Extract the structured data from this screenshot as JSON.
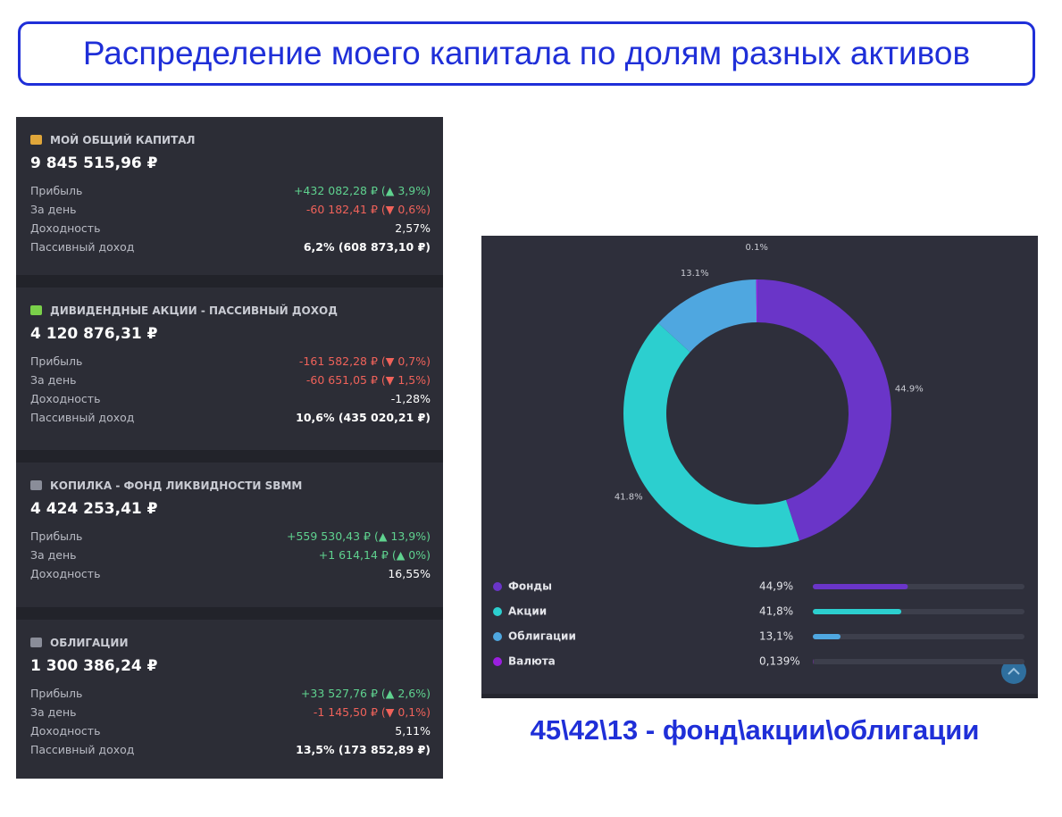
{
  "header": {
    "title": "Распределение моего капитала по долям разных активов"
  },
  "cards": [
    {
      "title": "МОЙ ОБЩИЙ КАПИТАЛ",
      "icon_color": "#e0a63a",
      "total": "9 845 515,96 ₽",
      "rows": [
        {
          "label": "Прибыль",
          "value": "+432 082,28 ₽ (▲ 3,9%)",
          "color": "#5fd28f"
        },
        {
          "label": "За день",
          "value": "-60 182,41 ₽ (▼ 0,6%)",
          "color": "#f0625a"
        },
        {
          "label": "Доходность",
          "value": "2,57%",
          "color": "#ffffff"
        },
        {
          "label": "Пассивный доход",
          "value": "6,2% (608 873,10 ₽)",
          "color": "#ffffff"
        }
      ]
    },
    {
      "title": "ДИВИДЕНДНЫЕ АКЦИИ - ПАССИВНЫЙ ДОХОД",
      "icon_color": "#7ad04a",
      "total": "4 120 876,31 ₽",
      "rows": [
        {
          "label": "Прибыль",
          "value": "-161 582,28 ₽ (▼ 0,7%)",
          "color": "#f0625a"
        },
        {
          "label": "За день",
          "value": "-60 651,05 ₽ (▼ 1,5%)",
          "color": "#f0625a"
        },
        {
          "label": "Доходность",
          "value": "-1,28%",
          "color": "#ffffff"
        },
        {
          "label": "Пассивный доход",
          "value": "10,6% (435 020,21 ₽)",
          "color": "#ffffff"
        }
      ]
    },
    {
      "title": "КОПИЛКА - ФОНД ЛИКВИДНОСТИ SBMM",
      "icon_color": "#8a8d99",
      "total": "4 424 253,41 ₽",
      "rows": [
        {
          "label": "Прибыль",
          "value": "+559 530,43 ₽ (▲ 13,9%)",
          "color": "#5fd28f"
        },
        {
          "label": "За день",
          "value": "+1 614,14 ₽ (▲ 0%)",
          "color": "#5fd28f"
        },
        {
          "label": "Доходность",
          "value": "16,55%",
          "color": "#ffffff"
        }
      ]
    },
    {
      "title": "ОБЛИГАЦИИ",
      "icon_color": "#8a8d99",
      "total": "1 300 386,24 ₽",
      "rows": [
        {
          "label": "Прибыль",
          "value": "+33 527,76 ₽ (▲ 2,6%)",
          "color": "#5fd28f"
        },
        {
          "label": "За день",
          "value": "-1 145,50 ₽ (▼ 0,1%)",
          "color": "#f0625a"
        },
        {
          "label": "Доходность",
          "value": "5,11%",
          "color": "#ffffff"
        },
        {
          "label": "Пассивный доход",
          "value": "13,5% (173 852,89 ₽)",
          "color": "#ffffff"
        }
      ]
    }
  ],
  "chart_data": {
    "type": "donut",
    "categories": [
      "Фонды",
      "Акции",
      "Облигации",
      "Валюта"
    ],
    "values": [
      44.9,
      41.8,
      13.1,
      0.139
    ],
    "value_labels": [
      "44.9%",
      "41.8%",
      "13.1%",
      "0.1%"
    ],
    "legend_value_labels": [
      "44,9%",
      "41,8%",
      "13,1%",
      "0,139%"
    ],
    "colors": [
      "#6a35c8",
      "#2ccfcf",
      "#4fa7e0",
      "#9b1fe0"
    ]
  },
  "caption": "45\\42\\13 - фонд\\акции\\облигации"
}
